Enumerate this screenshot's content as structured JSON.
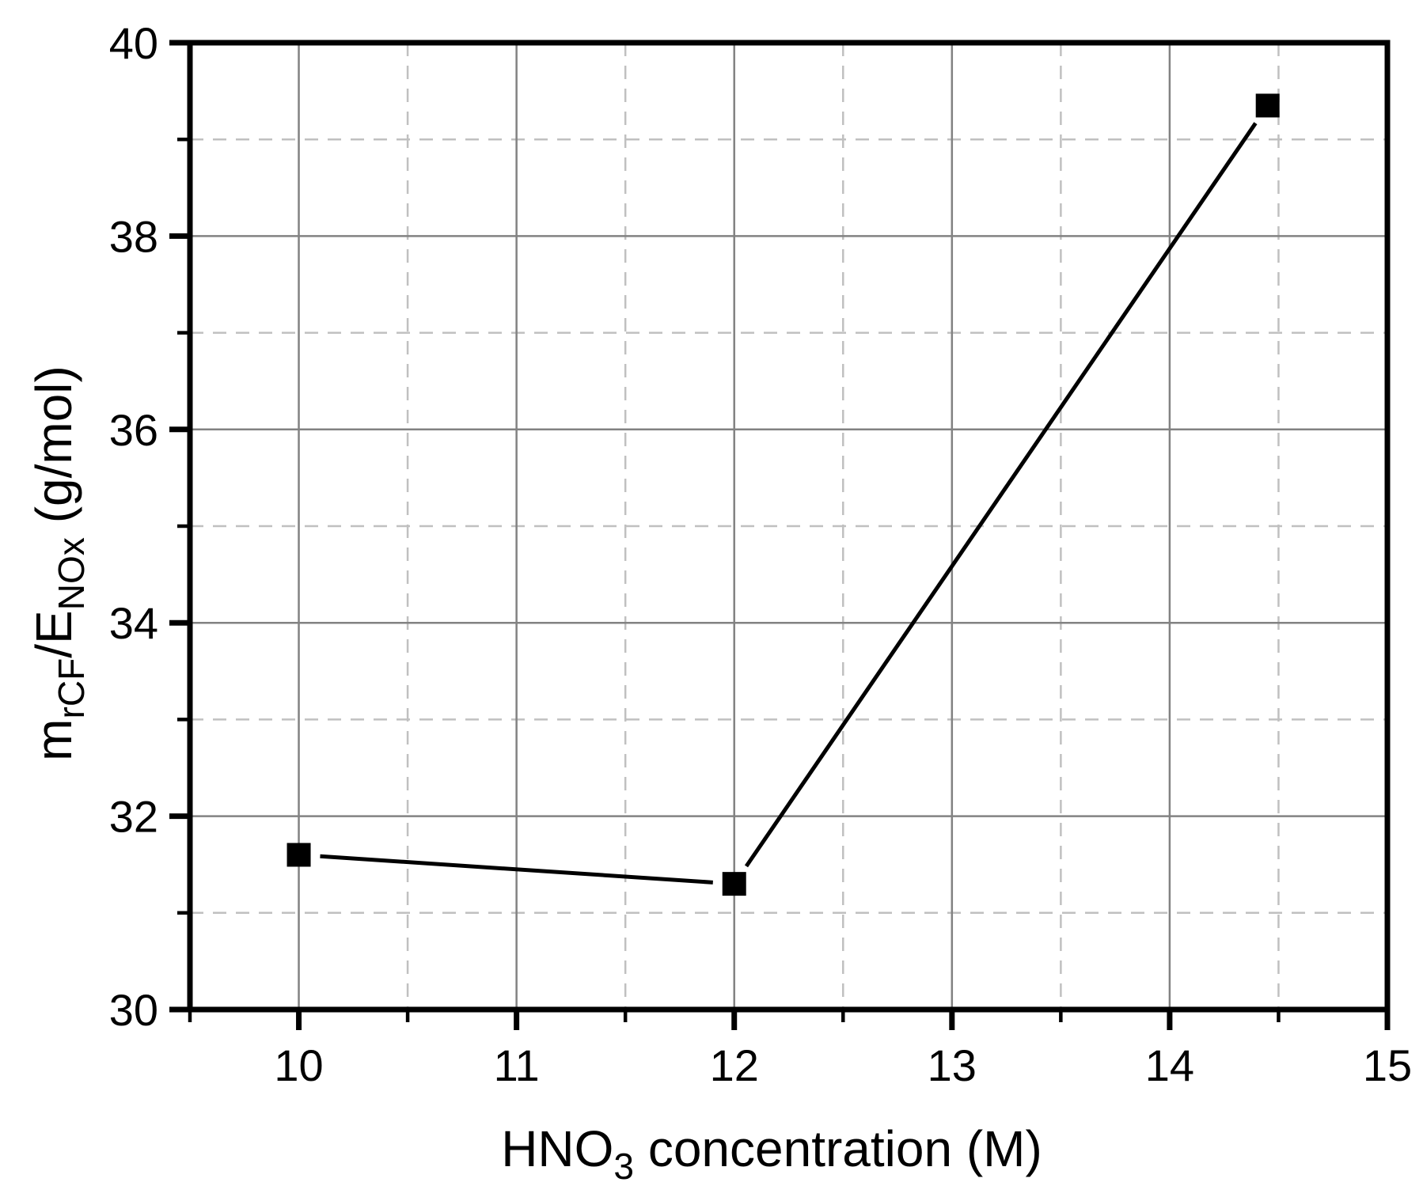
{
  "figure": {
    "background": "#ffffff",
    "axis_color": "#000000",
    "grid_major_color": "#828282",
    "grid_minor_color": "#c0c0c0",
    "series_color": "#000000"
  },
  "labels": {
    "xlabel": {
      "prefix": "HNO",
      "sub": "3",
      "suffix": " concentration (M)"
    },
    "ylabel": {
      "part1": "m",
      "sub1": "rCF",
      "part2": "/E",
      "sub2": "NOx",
      "suffix": " (g/mol)"
    }
  },
  "chart_data": {
    "type": "line",
    "title": "",
    "xlabel": "HNO3 concentration (M)",
    "ylabel": "mrCF/ENOx (g/mol)",
    "xlim": [
      9.5,
      15
    ],
    "ylim": [
      30,
      40
    ],
    "x_major_ticks": [
      10,
      11,
      12,
      13,
      14,
      15
    ],
    "x_minor_ticks": [
      9.5,
      10.5,
      11.5,
      12.5,
      13.5,
      14.5
    ],
    "y_major_ticks": [
      30,
      32,
      34,
      36,
      38,
      40
    ],
    "y_minor_ticks": [
      31,
      33,
      35,
      37,
      39
    ],
    "grid": {
      "major": "solid",
      "minor": "dashed",
      "on": true
    },
    "legend": "none",
    "series": [
      {
        "name": "mrCF/ENOx",
        "marker": "filled-square",
        "line": "solid",
        "points": [
          [
            10,
            31.6
          ],
          [
            12,
            31.3
          ],
          [
            14.45,
            39.35
          ]
        ]
      }
    ]
  }
}
